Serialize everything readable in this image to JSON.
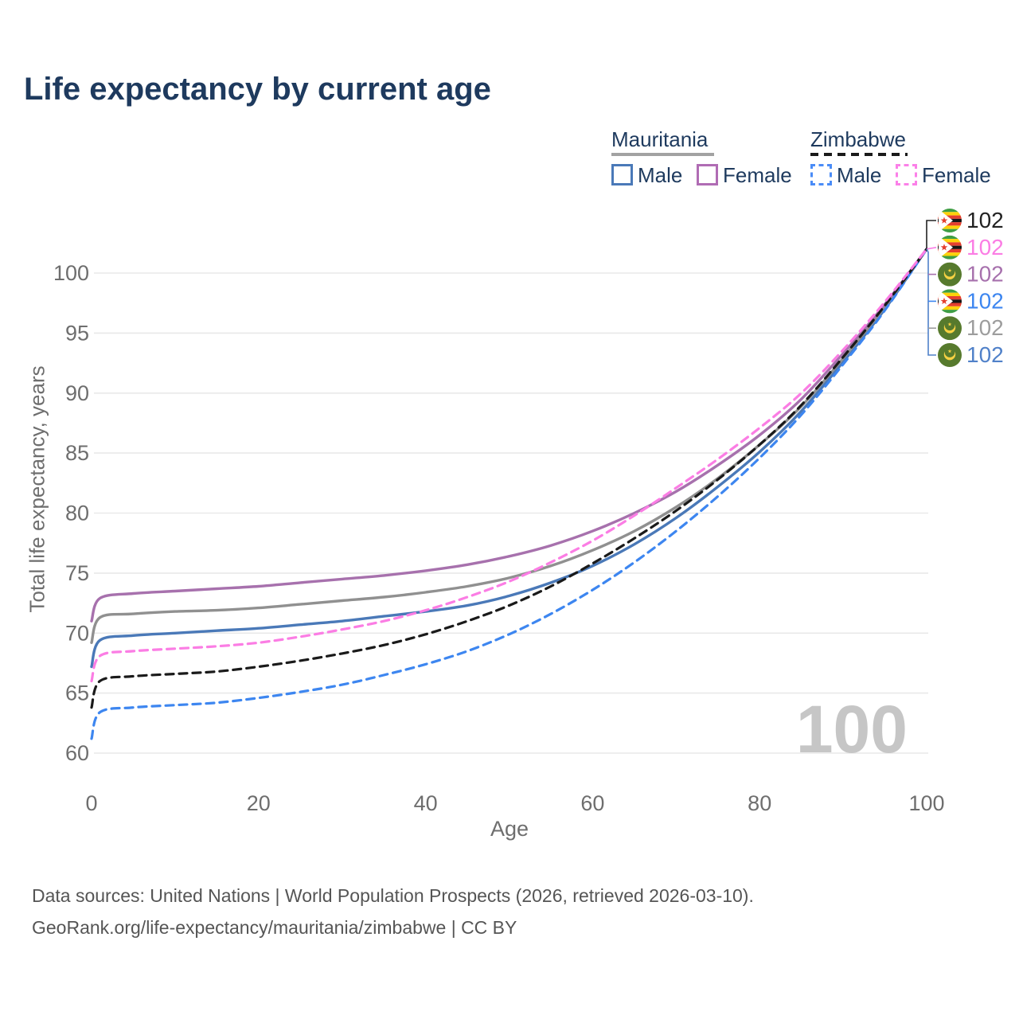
{
  "title": "Life expectancy by current age",
  "watermark": "100",
  "legend": {
    "groups": [
      {
        "name": "Mauritania",
        "line_style": "solid",
        "line_color": "#a2a2a2"
      },
      {
        "name": "Zimbabwe",
        "line_style": "dashed",
        "line_color": "#1a1a1a"
      }
    ],
    "items": [
      {
        "label": "Male",
        "box_color": "#4a79b8",
        "box_style": "solid"
      },
      {
        "label": "Female",
        "box_color": "#b06cb4",
        "box_style": "solid"
      },
      {
        "label": "Male",
        "box_color": "#4a8cf7",
        "box_style": "dashed"
      },
      {
        "label": "Female",
        "box_color": "#fb80e8",
        "box_style": "dashed"
      }
    ]
  },
  "axes": {
    "x_title": "Age",
    "y_title": "Total life expectancy, years"
  },
  "chart_data": {
    "type": "line",
    "title": "Life expectancy by current age",
    "xlabel": "Age",
    "ylabel": "Total life expectancy, years",
    "xlim": [
      0,
      100
    ],
    "ylim": [
      60,
      103
    ],
    "x_ticks": [
      0,
      20,
      40,
      60,
      80,
      100
    ],
    "y_ticks": [
      60,
      65,
      70,
      75,
      80,
      85,
      90,
      95,
      100
    ],
    "grid": "horizontal",
    "legend_position": "top-right",
    "ages": [
      0,
      1,
      5,
      10,
      15,
      20,
      25,
      30,
      35,
      40,
      45,
      50,
      55,
      60,
      65,
      70,
      75,
      80,
      85,
      90,
      95,
      100
    ],
    "series": [
      {
        "name": "Mauritania Male",
        "country": "Mauritania",
        "sex": "Male",
        "style": "solid",
        "color": "#4a79b8",
        "values": [
          67.2,
          69.4,
          69.8,
          70.0,
          70.2,
          70.4,
          70.7,
          71.0,
          71.4,
          71.8,
          72.3,
          73.1,
          74.2,
          75.6,
          77.4,
          79.6,
          82.2,
          85.1,
          88.5,
          92.6,
          97.0,
          102
        ]
      },
      {
        "name": "Mauritania Both sexes",
        "country": "Mauritania",
        "sex": "Both sexes",
        "style": "solid",
        "color": "#909090",
        "values": [
          69.2,
          71.3,
          71.6,
          71.8,
          71.9,
          72.1,
          72.4,
          72.7,
          73.0,
          73.4,
          73.9,
          74.6,
          75.6,
          76.9,
          78.5,
          80.5,
          82.9,
          85.7,
          88.9,
          92.9,
          97.2,
          102
        ]
      },
      {
        "name": "Mauritania Female",
        "country": "Mauritania",
        "sex": "Female",
        "style": "solid",
        "color": "#a771ad",
        "values": [
          71.0,
          72.9,
          73.3,
          73.5,
          73.7,
          73.9,
          74.2,
          74.5,
          74.8,
          75.2,
          75.7,
          76.4,
          77.3,
          78.5,
          80.0,
          81.8,
          84.0,
          86.5,
          89.5,
          93.3,
          97.4,
          102
        ]
      },
      {
        "name": "Zimbabwe Male",
        "country": "Zimbabwe",
        "sex": "Male",
        "style": "dashed",
        "color": "#3d86f0",
        "values": [
          61.2,
          63.4,
          63.8,
          64.0,
          64.2,
          64.6,
          65.1,
          65.7,
          66.5,
          67.4,
          68.5,
          69.9,
          71.6,
          73.6,
          75.9,
          78.5,
          81.4,
          84.6,
          88.2,
          92.4,
          96.9,
          102
        ]
      },
      {
        "name": "Zimbabwe Both sexes",
        "country": "Zimbabwe",
        "sex": "Both sexes",
        "style": "dashed",
        "color": "#1a1a1a",
        "values": [
          63.8,
          66.0,
          66.4,
          66.6,
          66.8,
          67.2,
          67.7,
          68.3,
          69.0,
          69.9,
          71.0,
          72.3,
          73.9,
          75.8,
          77.9,
          80.2,
          82.8,
          85.7,
          89.0,
          93.0,
          97.3,
          102
        ]
      },
      {
        "name": "Zimbabwe Female",
        "country": "Zimbabwe",
        "sex": "Female",
        "style": "dashed",
        "color": "#fb7de4",
        "values": [
          66.0,
          68.1,
          68.5,
          68.7,
          68.9,
          69.2,
          69.7,
          70.3,
          71.0,
          71.9,
          73.0,
          74.3,
          75.9,
          77.7,
          79.8,
          82.1,
          84.5,
          87.1,
          90.0,
          93.6,
          97.6,
          102
        ]
      }
    ]
  },
  "end_labels": [
    {
      "flag": "zw",
      "country": "Zimbabwe",
      "value": "102",
      "color": "#222222"
    },
    {
      "flag": "zw",
      "country": "Zimbabwe",
      "value": "102",
      "color": "#fb7de4"
    },
    {
      "flag": "mr",
      "country": "Mauritania",
      "value": "102",
      "color": "#a771ad"
    },
    {
      "flag": "zw",
      "country": "Zimbabwe",
      "value": "102",
      "color": "#3d86f0"
    },
    {
      "flag": "mr",
      "country": "Mauritania",
      "value": "102",
      "color": "#9d9d9d"
    },
    {
      "flag": "mr",
      "country": "Mauritania",
      "value": "102",
      "color": "#5081c9"
    }
  ],
  "footer": {
    "line1": "Data sources: United Nations | World Population Prospects (2026, retrieved 2026-03-10).",
    "line2": "GeoRank.org/life-expectancy/mauritania/zimbabwe | CC BY"
  }
}
